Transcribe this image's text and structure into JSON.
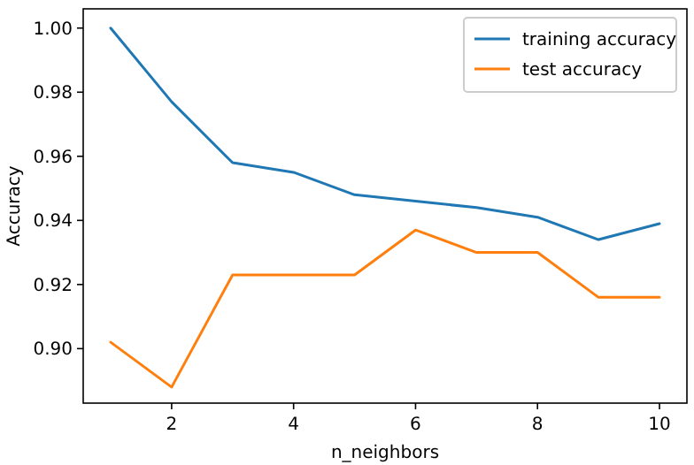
{
  "chart_data": {
    "type": "line",
    "xlabel": "n_neighbors",
    "ylabel": "Accuracy",
    "x": [
      1,
      2,
      3,
      4,
      5,
      6,
      7,
      8,
      9,
      10
    ],
    "series": [
      {
        "name": "training accuracy",
        "color": "#1f77b4",
        "values": [
          1.0,
          0.977,
          0.958,
          0.955,
          0.948,
          0.946,
          0.944,
          0.941,
          0.934,
          0.939
        ]
      },
      {
        "name": "test accuracy",
        "color": "#ff7f0e",
        "values": [
          0.902,
          0.888,
          0.923,
          0.923,
          0.923,
          0.937,
          0.93,
          0.93,
          0.916,
          0.916
        ]
      }
    ],
    "xlim": [
      0.55,
      10.45
    ],
    "xticks": [
      2,
      4,
      6,
      8,
      10
    ],
    "ylim": [
      0.883,
      1.006
    ],
    "yticks": [
      {
        "value": 0.9,
        "label": "0.90"
      },
      {
        "value": 0.92,
        "label": "0.92"
      },
      {
        "value": 0.94,
        "label": "0.94"
      },
      {
        "value": 0.96,
        "label": "0.96"
      },
      {
        "value": 0.98,
        "label": "0.98"
      },
      {
        "value": 1.0,
        "label": "1.00"
      }
    ],
    "legend": "top right",
    "grid": false
  }
}
